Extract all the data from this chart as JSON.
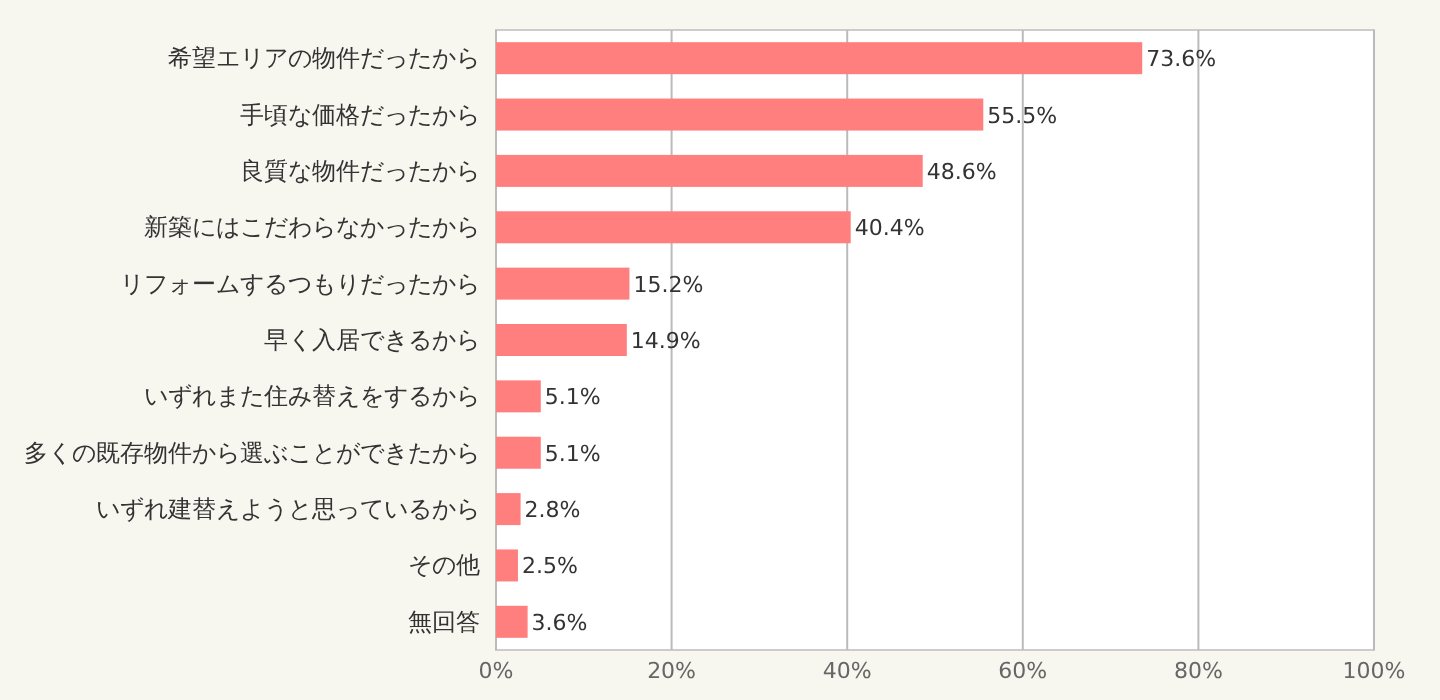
{
  "chart_data": {
    "type": "bar",
    "orientation": "horizontal",
    "categories": [
      "希望エリアの物件だったから",
      "手頃な価格だったから",
      "良質な物件だったから",
      "新築にはこだわらなかったから",
      "リフォームするつもりだったから",
      "早く入居できるから",
      "いずれまた住み替えをするから",
      "多くの既存物件から選ぶことができたから",
      "いずれ建替えようと思っているから",
      "その他",
      "無回答"
    ],
    "values": [
      73.6,
      55.5,
      48.6,
      40.4,
      15.2,
      14.9,
      5.1,
      5.1,
      2.8,
      2.5,
      3.6
    ],
    "value_labels": [
      "73.6%",
      "55.5%",
      "48.6%",
      "40.4%",
      "15.2%",
      "14.9%",
      "5.1%",
      "5.1%",
      "2.8%",
      "2.5%",
      "3.6%"
    ],
    "color": "#ff7f7f",
    "xlim": [
      0,
      100
    ],
    "xticks": [
      {
        "value": 0,
        "label": "0%"
      },
      {
        "value": 20,
        "label": "20%"
      },
      {
        "value": 40,
        "label": "40%"
      },
      {
        "value": 60,
        "label": "60%"
      },
      {
        "value": 80,
        "label": "80%"
      },
      {
        "value": 100,
        "label": "100%"
      }
    ],
    "grid": "x"
  }
}
